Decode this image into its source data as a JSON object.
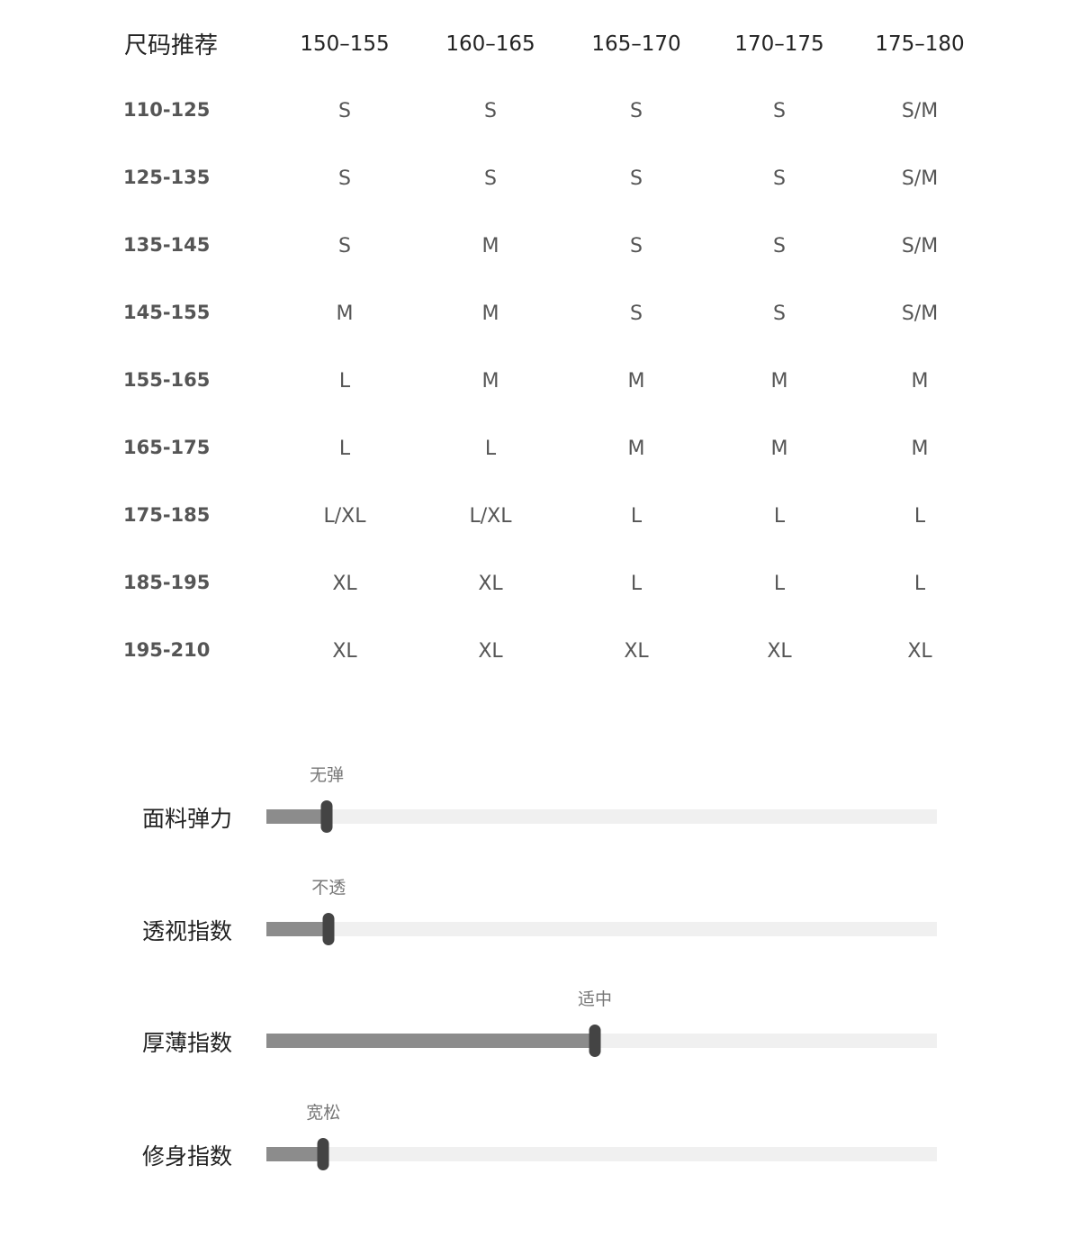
{
  "size_table": {
    "title": "尺码推荐",
    "columns": [
      "150–155",
      "160–165",
      "165–170",
      "170–175",
      "175–180"
    ],
    "rows": [
      {
        "label": "110-125",
        "values": [
          "S",
          "S",
          "S",
          "S",
          "S/M"
        ]
      },
      {
        "label": "125-135",
        "values": [
          "S",
          "S",
          "S",
          "S",
          "S/M"
        ]
      },
      {
        "label": "135-145",
        "values": [
          "S",
          "M",
          "S",
          "S",
          "S/M"
        ]
      },
      {
        "label": "145-155",
        "values": [
          "M",
          "M",
          "S",
          "S",
          "S/M"
        ]
      },
      {
        "label": "155-165",
        "values": [
          "L",
          "M",
          "M",
          "M",
          "M"
        ]
      },
      {
        "label": "165-175",
        "values": [
          "L",
          "L",
          "M",
          "M",
          "M"
        ]
      },
      {
        "label": "175-185",
        "values": [
          "L/XL",
          "L/XL",
          "L",
          "L",
          "L"
        ]
      },
      {
        "label": "185-195",
        "values": [
          "XL",
          "XL",
          "L",
          "L",
          "L"
        ]
      },
      {
        "label": "195-210",
        "values": [
          "XL",
          "XL",
          "XL",
          "XL",
          "XL"
        ]
      }
    ]
  },
  "attributes": [
    {
      "label": "面料弹力",
      "value_label": "无弹",
      "level": 0.09
    },
    {
      "label": "透视指数",
      "value_label": "不透",
      "level": 0.093
    },
    {
      "label": "厚薄指数",
      "value_label": "适中",
      "level": 0.49
    },
    {
      "label": "修身指数",
      "value_label": "宽松",
      "level": 0.085
    }
  ],
  "colors": {
    "fill": "#8c8c8c",
    "track": "#f0f0f0",
    "thumb": "#444444"
  }
}
